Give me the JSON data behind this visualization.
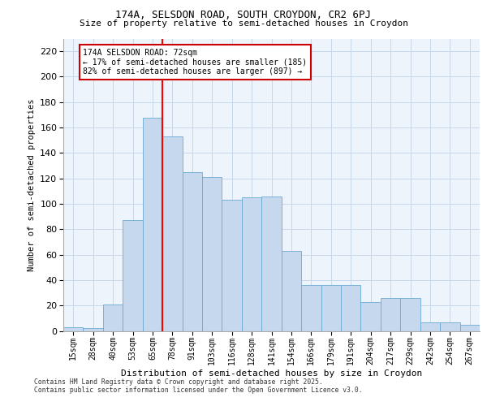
{
  "title_line1": "174A, SELSDON ROAD, SOUTH CROYDON, CR2 6PJ",
  "title_line2": "Size of property relative to semi-detached houses in Croydon",
  "xlabel": "Distribution of semi-detached houses by size in Croydon",
  "ylabel": "Number of semi-detached properties",
  "categories": [
    "15sqm",
    "28sqm",
    "40sqm",
    "53sqm",
    "65sqm",
    "78sqm",
    "91sqm",
    "103sqm",
    "116sqm",
    "128sqm",
    "141sqm",
    "154sqm",
    "166sqm",
    "179sqm",
    "191sqm",
    "204sqm",
    "217sqm",
    "229sqm",
    "242sqm",
    "254sqm",
    "267sqm"
  ],
  "values": [
    3,
    2,
    21,
    87,
    168,
    153,
    125,
    121,
    103,
    105,
    106,
    63,
    36,
    36,
    36,
    23,
    26,
    26,
    7,
    7,
    5
  ],
  "bar_color": "#c5d8ed",
  "bar_edge_color": "#6aaad4",
  "grid_color": "#c8d8e8",
  "bg_color": "#eef4fb",
  "property_line_x": 4.5,
  "property_label": "174A SELSDON ROAD: 72sqm",
  "pct_smaller": "17% of semi-detached houses are smaller (185)",
  "pct_larger": "82% of semi-detached houses are larger (897)",
  "annotation_box_color": "#cc0000",
  "footer_line1": "Contains HM Land Registry data © Crown copyright and database right 2025.",
  "footer_line2": "Contains public sector information licensed under the Open Government Licence v3.0.",
  "ylim": [
    0,
    230
  ],
  "yticks": [
    0,
    20,
    40,
    60,
    80,
    100,
    120,
    140,
    160,
    180,
    200,
    220
  ]
}
